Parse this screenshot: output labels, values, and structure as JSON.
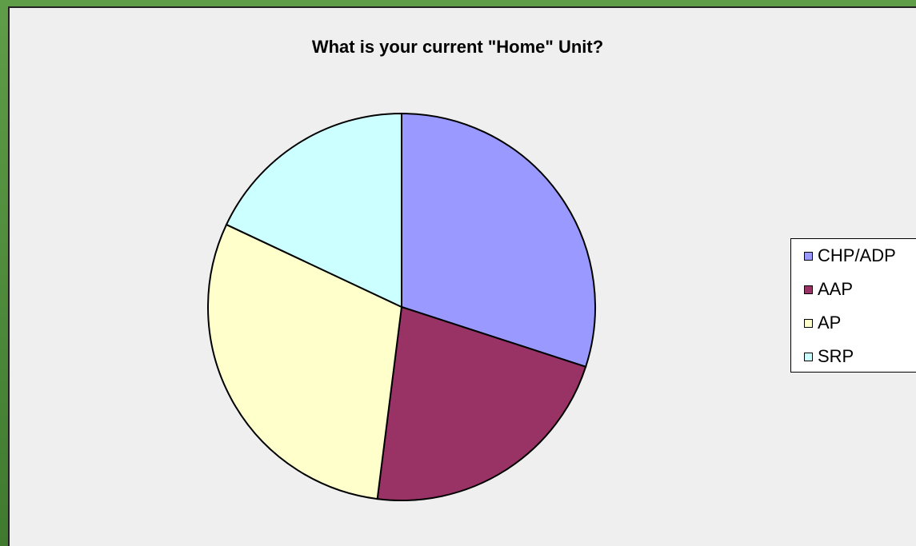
{
  "chart_data": {
    "type": "pie",
    "title": "What is your current \"Home\" Unit?",
    "categories": [
      "CHP/ADP",
      "AAP",
      "AP",
      "SRP"
    ],
    "values": [
      30,
      22,
      30,
      18
    ],
    "colors": [
      "#9999ff",
      "#993366",
      "#ffffcc",
      "#ccffff"
    ],
    "legend_position": "right"
  }
}
